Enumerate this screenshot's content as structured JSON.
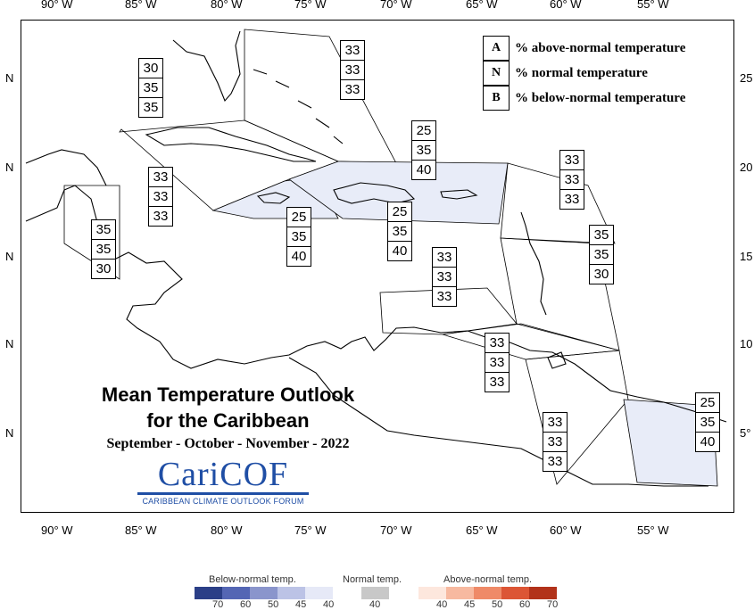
{
  "map": {
    "longitude_ticks": [
      "90° W",
      "85° W",
      "80° W",
      "75° W",
      "70° W",
      "65° W",
      "60° W",
      "55° W"
    ],
    "latitude_ticks_left": [
      "N",
      "N",
      "N",
      "N",
      "N"
    ],
    "latitude_ticks_right": [
      "25",
      "20",
      "15",
      "10",
      "5°"
    ]
  },
  "legend": [
    {
      "key": "A",
      "text": "% above-normal temperature"
    },
    {
      "key": "N",
      "text": "% normal temperature"
    },
    {
      "key": "B",
      "text": "% below-normal temperature"
    }
  ],
  "regions": [
    {
      "id": "bahamas",
      "values": [
        "33",
        "33",
        "33"
      ],
      "shaded": false
    },
    {
      "id": "cuba",
      "values": [
        "30",
        "35",
        "35"
      ],
      "shaded": false
    },
    {
      "id": "hispaniola",
      "values": [
        "25",
        "35",
        "40"
      ],
      "shaded": true
    },
    {
      "id": "northern-leewards",
      "values": [
        "33",
        "33",
        "33"
      ],
      "shaded": false
    },
    {
      "id": "cayman",
      "values": [
        "33",
        "33",
        "33"
      ],
      "shaded": false
    },
    {
      "id": "jamaica",
      "values": [
        "25",
        "35",
        "40"
      ],
      "shaded": true
    },
    {
      "id": "puerto-rico",
      "values": [
        "25",
        "35",
        "40"
      ],
      "shaded": true
    },
    {
      "id": "belize",
      "values": [
        "35",
        "35",
        "30"
      ],
      "shaded": false
    },
    {
      "id": "windwards",
      "values": [
        "35",
        "35",
        "30"
      ],
      "shaded": false
    },
    {
      "id": "abc-islands",
      "values": [
        "33",
        "33",
        "33"
      ],
      "shaded": false
    },
    {
      "id": "trinidad",
      "values": [
        "33",
        "33",
        "33"
      ],
      "shaded": false
    },
    {
      "id": "guyana",
      "values": [
        "33",
        "33",
        "33"
      ],
      "shaded": false
    },
    {
      "id": "suriname",
      "values": [
        "25",
        "35",
        "40"
      ],
      "shaded": true
    }
  ],
  "title": {
    "line1": "Mean Temperature Outlook",
    "line2": "for the Caribbean",
    "line3": "September - October - November - 2022"
  },
  "logo": {
    "word": "CariCOF",
    "subtitle": "CARIBBEAN CLIMATE OUTLOOK FORUM"
  },
  "color_scale": {
    "below_label": "Below-normal temp.",
    "normal_label": "Normal temp.",
    "above_label": "Above-normal temp.",
    "below_numbers": [
      "70",
      "60",
      "50",
      "45",
      "40"
    ],
    "normal_numbers": [
      "40"
    ],
    "above_numbers": [
      "40",
      "45",
      "50",
      "60",
      "70"
    ],
    "below_colors": [
      "#2b3f87",
      "#5466b4",
      "#8a95cc",
      "#bcc3e6",
      "#e6e9f7"
    ],
    "normal_color": "#c8c8c8",
    "above_colors": [
      "#fde7dd",
      "#f7b9a0",
      "#ef8a68",
      "#dc5535",
      "#b2321a"
    ],
    "shade_color": "#e8ecf8"
  }
}
